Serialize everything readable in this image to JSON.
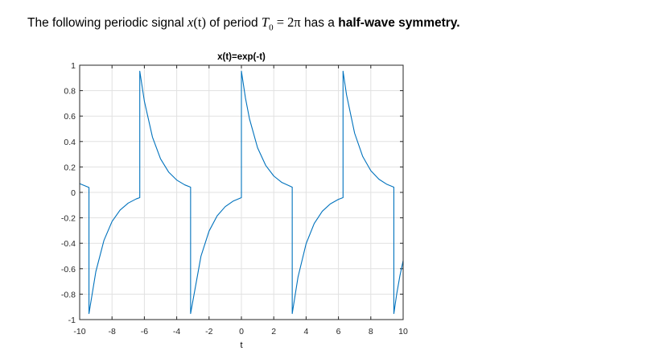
{
  "header": {
    "lead_text": "The following periodic signal ",
    "signal_var": "x",
    "signal_arg": "(t)",
    "mid_text": " of period ",
    "period_var": "T",
    "period_sub": "0",
    "period_value": " = 2π",
    "tail_text": " has a ",
    "emphasis": "half-wave symmetry.",
    "top_strip_color": "#000000"
  },
  "chart_data": {
    "type": "line",
    "title": "x(t)=exp(-t)",
    "xlabel": "t",
    "ylabel": "",
    "xlim": [
      -10,
      10
    ],
    "ylim": [
      -1,
      1
    ],
    "xticks": [
      -10,
      -8,
      -6,
      -4,
      -2,
      0,
      2,
      4,
      6,
      8,
      10
    ],
    "xtick_labels": [
      "-10",
      "-8",
      "-6",
      "-4",
      "-2",
      "0",
      "2",
      "4",
      "6",
      "8",
      "10"
    ],
    "yticks": [
      -1,
      -0.8,
      -0.6,
      -0.4,
      -0.2,
      0,
      0.2,
      0.4,
      0.6,
      0.8,
      1
    ],
    "ytick_labels": [
      "-1",
      "-0.8",
      "-0.6",
      "-0.4",
      "-0.2",
      "0",
      "0.2",
      "0.4",
      "0.6",
      "0.8",
      "1"
    ],
    "grid": true,
    "line_color": "#0072bd",
    "series": [
      {
        "segments": [
          {
            "x": [
              -10,
              -9.4248
            ],
            "y": [
              0.0686,
              0.0387
            ]
          },
          {
            "x": [
              -9.4248,
              -9.0,
              -8.5,
              -8.0,
              -7.5,
              -7.0,
              -6.5,
              -6.2832
            ],
            "y": [
              -0.9527,
              -0.623,
              -0.3779,
              -0.2292,
              -0.139,
              -0.0843,
              -0.0511,
              -0.0411
            ]
          },
          {
            "x": [
              -6.2832,
              -6.0,
              -5.5,
              -5.0,
              -4.5,
              -4.0,
              -3.5,
              -3.1416
            ],
            "y": [
              0.9527,
              0.7172,
              0.435,
              0.2638,
              0.16,
              0.0971,
              0.0589,
              0.0411
            ]
          },
          {
            "x": [
              -3.1416,
              -2.5,
              -2.0,
              -1.5,
              -1.0,
              -0.5,
              0
            ],
            "y": [
              -0.9527,
              -0.5016,
              -0.3042,
              -0.1845,
              -0.1119,
              -0.0679,
              -0.0411
            ]
          },
          {
            "x": [
              0,
              0.25,
              0.5,
              1.0,
              1.5,
              2.0,
              2.5,
              3.1416
            ],
            "y": [
              0.9527,
              0.742,
              0.5779,
              0.3505,
              0.2126,
              0.129,
              0.0782,
              0.0411
            ]
          },
          {
            "x": [
              3.1416,
              3.5,
              4.0,
              4.5,
              5.0,
              5.5,
              6.0,
              6.2832
            ],
            "y": [
              -0.9527,
              -0.6652,
              -0.4035,
              -0.2447,
              -0.1484,
              -0.09,
              -0.0546,
              -0.0411
            ]
          },
          {
            "x": [
              6.2832,
              6.5,
              7.0,
              7.5,
              8.0,
              8.5,
              9.0,
              9.4248
            ],
            "y": [
              0.9527,
              0.767,
              0.4652,
              0.2822,
              0.1711,
              0.1038,
              0.063,
              0.0411
            ]
          },
          {
            "x": [
              9.4248,
              9.6,
              9.8,
              10
            ],
            "y": [
              -0.9527,
              -0.8,
              -0.655,
              -0.5364
            ]
          }
        ]
      }
    ]
  }
}
